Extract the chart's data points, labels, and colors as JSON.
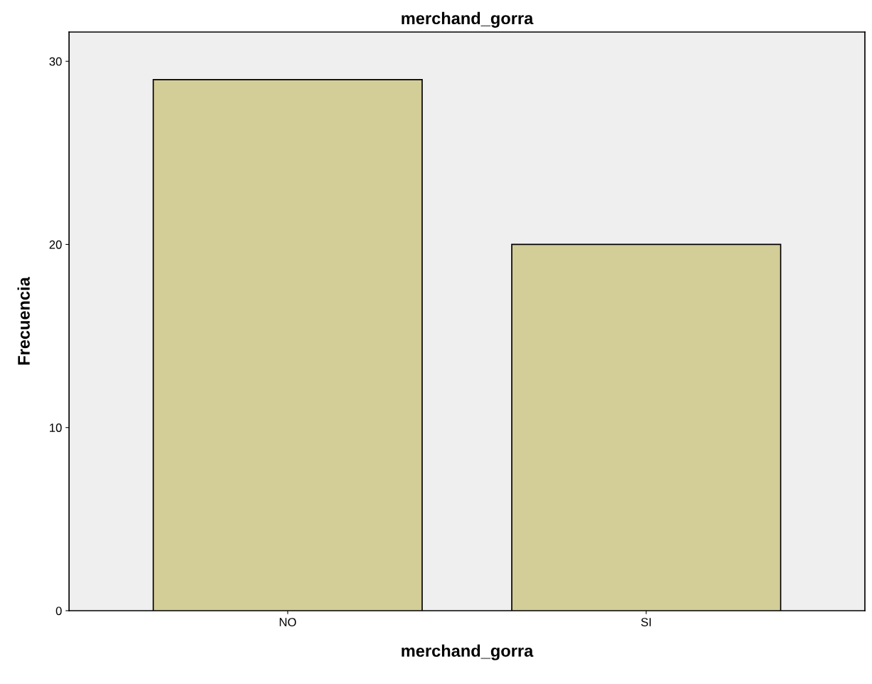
{
  "chart_data": {
    "type": "bar",
    "title": "merchand_gorra",
    "xlabel": "merchand_gorra",
    "ylabel": "Frecuencia",
    "categories": [
      "NO",
      "SI"
    ],
    "values": [
      29,
      20
    ],
    "color": "#d3cd98",
    "ylim": [
      0,
      31.6
    ],
    "yticks": [
      0,
      10,
      20,
      30
    ],
    "grid": false,
    "legend": false
  }
}
